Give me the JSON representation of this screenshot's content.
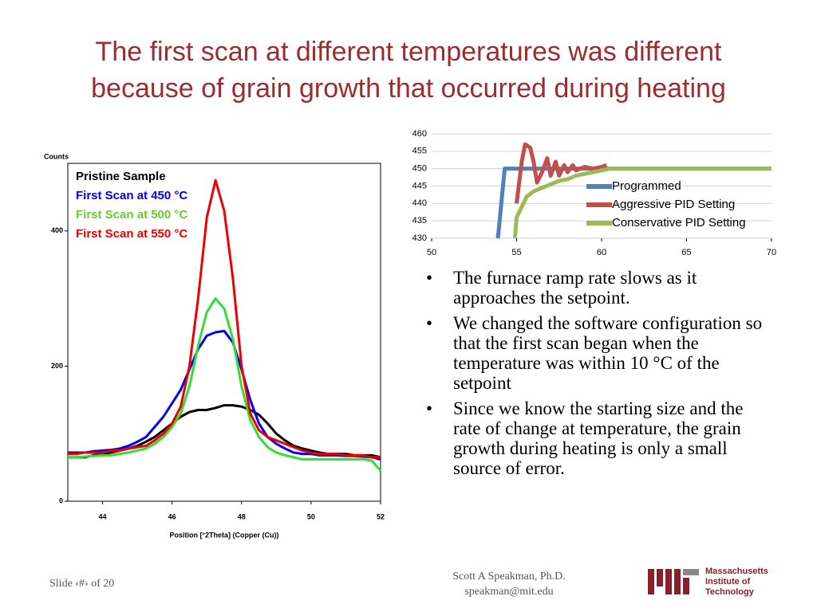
{
  "slide": {
    "title": [
      "The first scan at different temperatures was different",
      "because of grain growth that occurred during heating"
    ],
    "bullets": [
      "The furnace ramp rate slows as it approaches the setpoint.",
      "We changed the software configuration so that the first scan began when the temperature was within 10 °C of the setpoint",
      "Since we know the starting size and the rate of change at temperature, the grain growth during heating is only a small source of error."
    ],
    "footer": {
      "slide": "Slide ‹#› of 20",
      "author": "Scott A Speakman, Ph.D.",
      "email": "speakman@mit.edu",
      "logo": [
        "Massachusetts",
        "Institute of",
        "Technology"
      ]
    }
  },
  "chart_data": [
    {
      "type": "line",
      "y_label": "Counts",
      "x_label": "Position [°2Theta] (Copper (Cu))",
      "xlim": [
        43,
        52
      ],
      "xticks": [
        44,
        46,
        48,
        50,
        52
      ],
      "ylim": [
        0,
        500
      ],
      "yticks": [
        0,
        200,
        400
      ],
      "grid": false,
      "legend": "upper-left",
      "x": [
        43,
        43.25,
        43.5,
        43.75,
        44,
        44.25,
        44.5,
        44.75,
        45,
        45.25,
        45.5,
        45.75,
        46,
        46.25,
        46.5,
        46.75,
        47,
        47.25,
        47.5,
        47.75,
        48,
        48.25,
        48.5,
        48.75,
        49,
        49.25,
        49.5,
        49.75,
        50,
        50.25,
        50.5,
        50.75,
        51,
        51.25,
        51.5,
        51.75,
        52
      ],
      "series": [
        {
          "name": "Pristine Sample",
          "color": "#000000",
          "values": [
            65,
            65,
            65,
            68,
            70,
            72,
            75,
            78,
            82,
            88,
            95,
            105,
            115,
            125,
            132,
            135,
            135,
            138,
            142,
            142,
            140,
            135,
            128,
            115,
            100,
            90,
            82,
            78,
            75,
            72,
            70,
            70,
            70,
            68,
            68,
            68,
            65
          ]
        },
        {
          "name": "First Scan at 450 °C",
          "color": "#0000ee",
          "values": [
            72,
            72,
            72,
            74,
            75,
            76,
            78,
            82,
            88,
            95,
            110,
            125,
            145,
            165,
            195,
            225,
            245,
            250,
            252,
            235,
            195,
            150,
            115,
            95,
            85,
            78,
            72,
            70,
            70,
            68,
            68,
            68,
            67,
            67,
            66,
            65,
            62
          ]
        },
        {
          "name": "First Scan at 500 °C",
          "color": "#33dd33",
          "values": [
            65,
            65,
            66,
            67,
            68,
            68,
            70,
            72,
            75,
            78,
            85,
            95,
            110,
            130,
            170,
            230,
            280,
            300,
            285,
            240,
            170,
            120,
            95,
            80,
            72,
            68,
            65,
            62,
            62,
            62,
            62,
            62,
            62,
            62,
            62,
            60,
            45
          ]
        },
        {
          "name": "First Scan at 550 °C",
          "color": "#ee0000",
          "values": [
            70,
            70,
            72,
            72,
            72,
            75,
            75,
            78,
            80,
            82,
            90,
            100,
            115,
            140,
            200,
            300,
            420,
            475,
            430,
            330,
            200,
            130,
            105,
            95,
            90,
            85,
            80,
            75,
            72,
            70,
            70,
            70,
            68,
            68,
            68,
            65,
            65
          ]
        }
      ]
    },
    {
      "type": "line",
      "xlim": [
        50,
        70
      ],
      "xticks": [
        50,
        55,
        60,
        65,
        70
      ],
      "ylim": [
        430,
        460
      ],
      "yticks": [
        430,
        435,
        440,
        445,
        450,
        455,
        460
      ],
      "grid": true,
      "legend": "right",
      "series": [
        {
          "name": "Programmed",
          "color": "#4f81bd",
          "x": [
            53.9,
            54.3,
            70
          ],
          "values": [
            430,
            450,
            450
          ]
        },
        {
          "name": "Aggressive PID Setting",
          "color": "#c0504d",
          "x": [
            55.0,
            55.3,
            55.5,
            55.8,
            56.0,
            56.2,
            56.5,
            56.8,
            57.0,
            57.3,
            57.5,
            57.8,
            58.0,
            58.3,
            58.5,
            59.0,
            59.5,
            60.0,
            60.3
          ],
          "values": [
            440,
            452,
            457,
            456,
            452,
            446,
            449,
            453,
            448,
            452,
            448,
            451,
            449,
            451,
            449.5,
            450.5,
            450,
            450.5,
            451
          ]
        },
        {
          "name": "Conservative PID Setting",
          "color": "#9bbb59",
          "x": [
            54.9,
            55.0,
            55.3,
            55.6,
            56.0,
            56.5,
            57.0,
            57.5,
            58.0,
            58.5,
            59.0,
            59.5,
            60.0,
            60.5,
            70
          ],
          "values": [
            430,
            436,
            439,
            442,
            443.5,
            444.5,
            445.5,
            446.5,
            447,
            448,
            448.5,
            449,
            449.5,
            450,
            450
          ]
        }
      ]
    }
  ]
}
